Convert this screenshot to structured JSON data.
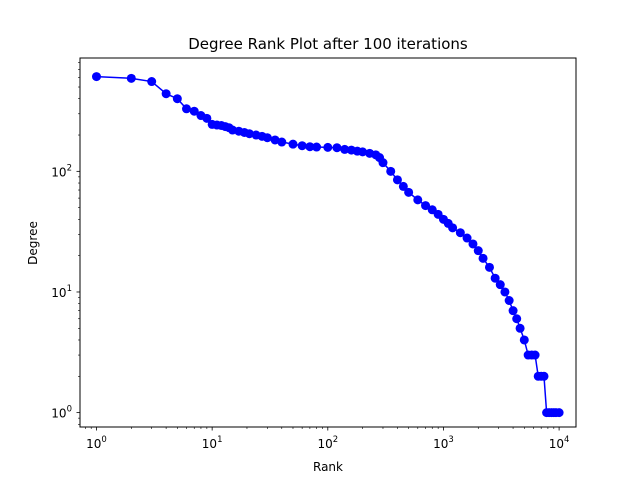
{
  "chart_data": {
    "type": "line",
    "title": "Degree Rank Plot after 100 iterations",
    "xlabel": "Rank",
    "ylabel": "Degree",
    "xscale": "log",
    "yscale": "log",
    "xlim": [
      0.72,
      14000
    ],
    "ylim": [
      0.76,
      870
    ],
    "grid": false,
    "legend": "none",
    "color": "#0000ff",
    "marker": "circle",
    "x_ticks": [
      {
        "base": "10",
        "exp": "0",
        "value": 1
      },
      {
        "base": "10",
        "exp": "1",
        "value": 10
      },
      {
        "base": "10",
        "exp": "2",
        "value": 100
      },
      {
        "base": "10",
        "exp": "3",
        "value": 1000
      },
      {
        "base": "10",
        "exp": "4",
        "value": 10000
      }
    ],
    "y_ticks": [
      {
        "base": "10",
        "exp": "0",
        "value": 1
      },
      {
        "base": "10",
        "exp": "1",
        "value": 10
      },
      {
        "base": "10",
        "exp": "2",
        "value": 100
      }
    ],
    "series": [
      {
        "x": [
          1,
          2,
          3,
          4,
          5,
          6,
          7,
          8,
          9,
          10,
          11,
          12,
          13,
          14,
          15,
          17,
          19,
          21,
          24,
          27,
          30,
          35,
          40,
          50,
          60,
          70,
          80,
          100,
          120,
          140,
          160,
          180,
          200,
          230,
          260,
          280,
          300,
          350,
          400,
          450,
          500,
          600,
          700,
          800,
          900,
          1000,
          1100,
          1200,
          1400,
          1600,
          1800,
          2000,
          2200,
          2500,
          2800,
          3100,
          3400,
          3700,
          4000,
          4300,
          4600,
          5000,
          5400,
          5800,
          6200,
          6600,
          7000,
          7400,
          7800,
          8200,
          8600,
          9000,
          9400,
          10000
        ],
        "y": [
          610,
          590,
          555,
          440,
          400,
          330,
          315,
          290,
          275,
          245,
          242,
          240,
          235,
          230,
          220,
          215,
          210,
          205,
          200,
          195,
          190,
          182,
          175,
          168,
          163,
          160,
          159,
          158,
          157,
          152,
          150,
          147,
          145,
          141,
          137,
          130,
          118,
          100,
          85,
          75,
          67,
          58,
          52,
          48,
          44,
          40,
          37,
          34,
          31,
          28,
          25,
          22,
          19,
          16,
          13,
          11.5,
          10,
          8.5,
          7,
          6,
          5,
          4,
          3,
          3,
          3,
          2,
          2,
          2,
          1,
          1,
          1,
          1,
          1,
          1
        ]
      }
    ]
  }
}
